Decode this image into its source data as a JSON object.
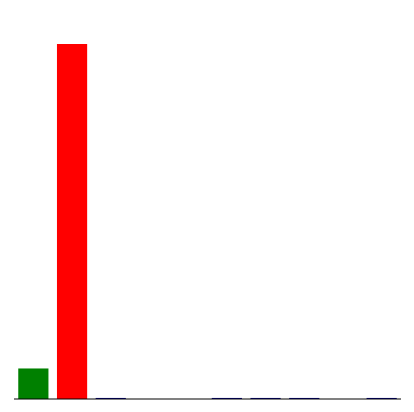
{
  "chart_data": {
    "type": "bar",
    "categories": [
      "",
      "",
      "",
      "",
      "",
      "",
      "",
      "",
      "",
      ""
    ],
    "values": [
      8.6,
      100,
      0.3,
      0,
      0,
      0.3,
      0.3,
      0.3,
      0,
      0.3
    ],
    "colors": [
      "#008000",
      "#ff0000",
      "#00008b",
      "#00008b",
      "#00008b",
      "#00008b",
      "#00008b",
      "#00008b",
      "#00008b",
      "#00008b"
    ],
    "title": "",
    "xlabel": "",
    "ylabel": "",
    "ylim": [
      0,
      100
    ],
    "grid": false,
    "axes": "baseline-only"
  }
}
